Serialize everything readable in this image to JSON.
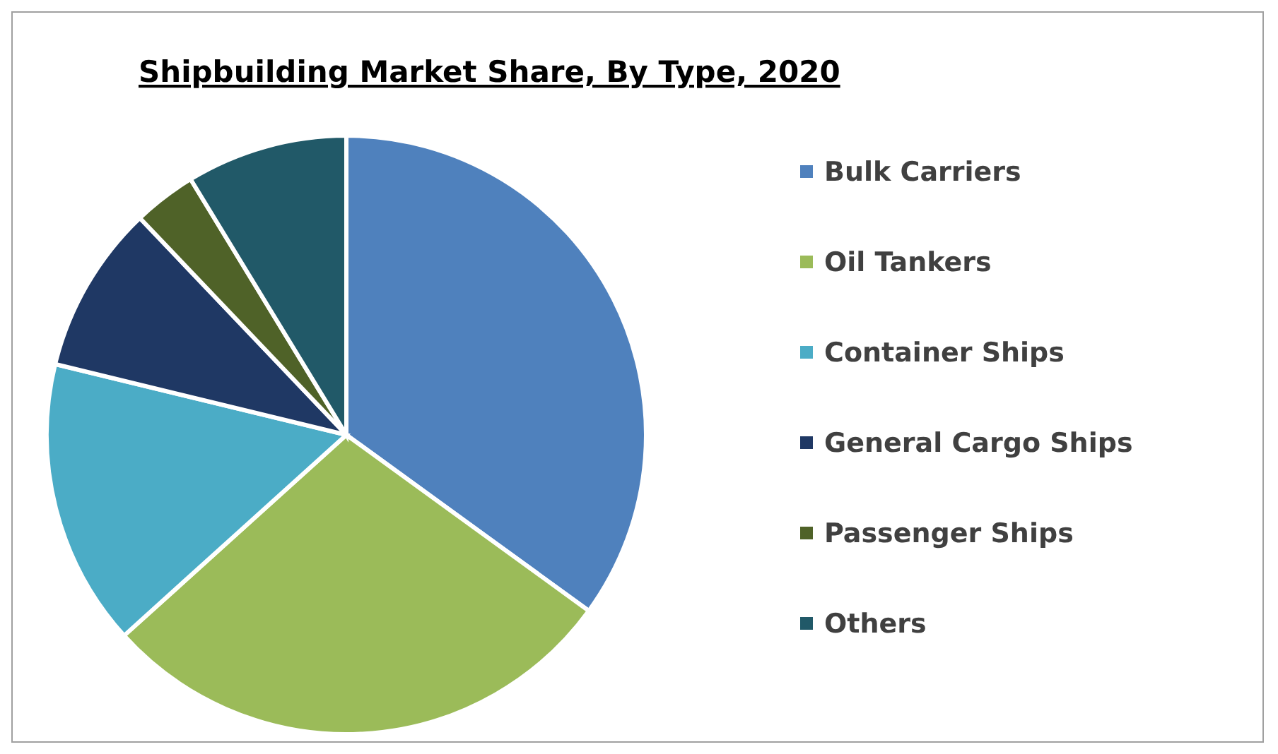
{
  "chart_data": {
    "type": "pie",
    "title": "Shipbuilding Market Share, By Type, 2020",
    "categories": [
      "Bulk Carriers",
      "Oil Tankers",
      "Container Ships",
      "General Cargo Ships",
      "Passenger Ships",
      "Others"
    ],
    "values": [
      35,
      28.3,
      15.5,
      9.1,
      3.4,
      8.7
    ],
    "colors": [
      "#4f81bd",
      "#9bbb59",
      "#4bacc6",
      "#1f3864",
      "#4f6228",
      "#215968"
    ],
    "legend": "right"
  }
}
